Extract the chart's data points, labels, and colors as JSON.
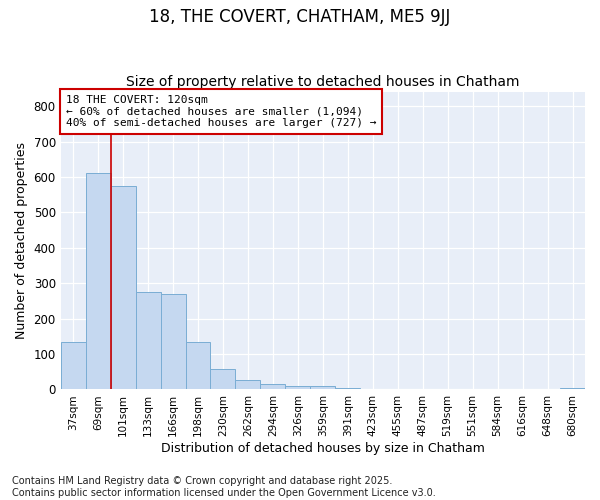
{
  "title": "18, THE COVERT, CHATHAM, ME5 9JJ",
  "subtitle": "Size of property relative to detached houses in Chatham",
  "xlabel": "Distribution of detached houses by size in Chatham",
  "ylabel": "Number of detached properties",
  "categories": [
    "37sqm",
    "69sqm",
    "101sqm",
    "133sqm",
    "166sqm",
    "198sqm",
    "230sqm",
    "262sqm",
    "294sqm",
    "326sqm",
    "359sqm",
    "391sqm",
    "423sqm",
    "455sqm",
    "487sqm",
    "519sqm",
    "551sqm",
    "584sqm",
    "616sqm",
    "648sqm",
    "680sqm"
  ],
  "values": [
    135,
    612,
    575,
    275,
    270,
    135,
    58,
    28,
    15,
    10,
    10,
    4,
    2,
    0,
    0,
    0,
    0,
    0,
    0,
    0,
    5
  ],
  "bar_color": "#c5d8f0",
  "bar_edgecolor": "#7aadd4",
  "vline_x_index": 2,
  "vline_color": "#cc0000",
  "annotation_text": "18 THE COVERT: 120sqm\n← 60% of detached houses are smaller (1,094)\n40% of semi-detached houses are larger (727) →",
  "annotation_box_edgecolor": "#cc0000",
  "annotation_box_facecolor": "#ffffff",
  "ylim": [
    0,
    840
  ],
  "yticks": [
    0,
    100,
    200,
    300,
    400,
    500,
    600,
    700,
    800
  ],
  "footer_text": "Contains HM Land Registry data © Crown copyright and database right 2025.\nContains public sector information licensed under the Open Government Licence v3.0.",
  "bg_color": "#ffffff",
  "plot_bg_color": "#e8eef8",
  "grid_color": "#ffffff",
  "title_fontsize": 12,
  "subtitle_fontsize": 10,
  "tick_fontsize": 7.5,
  "label_fontsize": 9,
  "annotation_fontsize": 8,
  "footer_fontsize": 7
}
